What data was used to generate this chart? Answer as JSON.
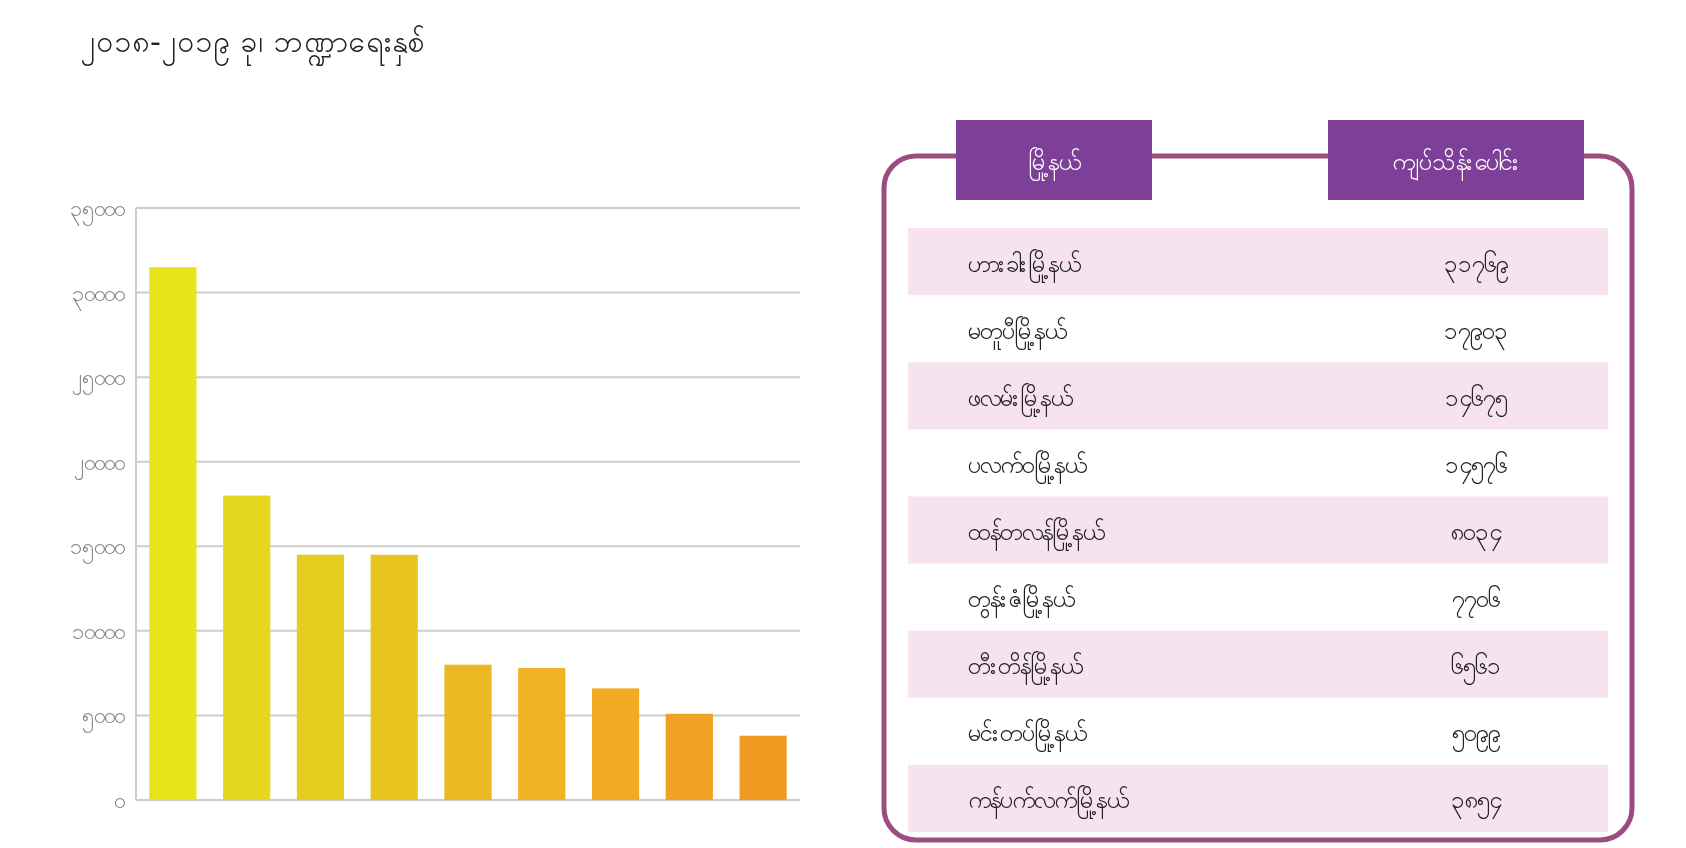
{
  "chart_data": [
    {
      "type": "bar",
      "title": "၂၀၁၈-၂၀၁၉ ခု၊ ဘဏ္ဍာရေးနှစ်",
      "categories": [
        null,
        null,
        null,
        null,
        null,
        null,
        null,
        null,
        null
      ],
      "values": [
        31500,
        18000,
        14500,
        14500,
        8000,
        7800,
        6600,
        5100,
        3800
      ],
      "colors": [
        "#e8e41a",
        "#e6d81e",
        "#e6cc1e",
        "#e8c420",
        "#ecb824",
        "#eeb224",
        "#f0aa24",
        "#f0a224",
        "#f09a22"
      ],
      "ylim": [
        0,
        35000
      ],
      "yticks": [
        {
          "value": 0,
          "label": "၀"
        },
        {
          "value": 5000,
          "label": "၅၀၀၀"
        },
        {
          "value": 10000,
          "label": "၁၀၀၀၀"
        },
        {
          "value": 15000,
          "label": "၁၅၀၀၀"
        },
        {
          "value": 20000,
          "label": "၂၀၀၀၀"
        },
        {
          "value": 25000,
          "label": "၂၅၀၀၀"
        },
        {
          "value": 30000,
          "label": "၃၀၀၀၀"
        },
        {
          "value": 35000,
          "label": "၃၅၀၀၀"
        }
      ],
      "grid": "y"
    },
    {
      "type": "other",
      "annotations": [
        "မြို့နယ်",
        "ကျပ်သိန်းပေါင်း",
        "ဟားခါးမြို့နယ်",
        "၃၁၇၆၉",
        "မတူပီမြို့နယ်",
        "၁၇၉၀၃",
        "ဖလမ်းမြို့နယ်",
        "၁၄၆၇၅",
        "ပလက်ဝမြို့နယ်",
        "၁၄၅၇၆",
        "ထန်တလန်မြို့နယ်",
        "၈၀၃၄",
        "တွန်းဇံမြို့နယ်",
        "၇၇၀၆",
        "တီးတိန်မြို့နယ်",
        "၆၅၆၁",
        "မင်းတပ်မြို့နယ်",
        "၅၀၉၉",
        "ကန်ပက်လက်မြို့နယ်",
        "၃၈၅၄"
      ]
    }
  ]
}
